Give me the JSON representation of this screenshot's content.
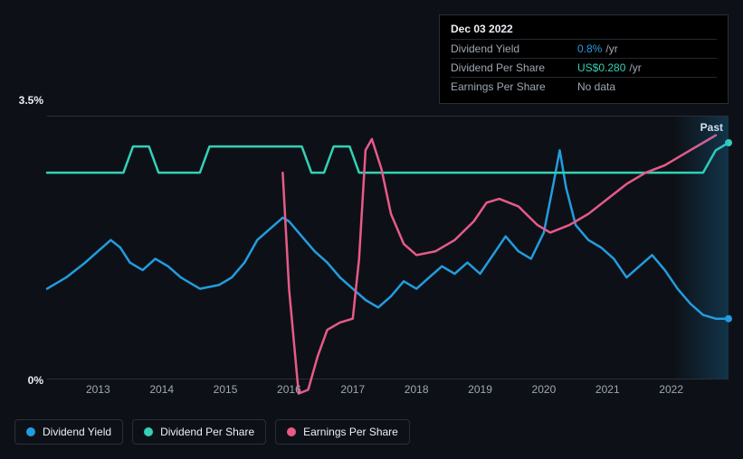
{
  "background_color": "#0d1117",
  "tooltip": {
    "date": "Dec 03 2022",
    "rows": [
      {
        "label": "Dividend Yield",
        "value": "0.8%",
        "unit": "/yr",
        "value_color": "#239cdf"
      },
      {
        "label": "Dividend Per Share",
        "value": "US$0.280",
        "unit": "/yr",
        "value_color": "#34d1b6"
      },
      {
        "label": "Earnings Per Share",
        "value": "No data",
        "unit": "",
        "value_color": "#9ea7b3"
      }
    ]
  },
  "chart": {
    "type": "line",
    "y_axis": {
      "min": 0,
      "max": 3.5,
      "ticks": [
        {
          "value": 3.5,
          "label": "3.5%"
        },
        {
          "value": 0,
          "label": "0%"
        }
      ]
    },
    "x_axis": {
      "min": 2012.2,
      "max": 2022.9,
      "ticks": [
        2013,
        2014,
        2015,
        2016,
        2017,
        2018,
        2019,
        2020,
        2021,
        2022
      ]
    },
    "past_label": "Past",
    "grid_color": "#2a2e37",
    "series": [
      {
        "name": "Dividend Yield",
        "color": "#239cdf",
        "width": 2.5,
        "end_marker": true,
        "points": [
          [
            2012.2,
            1.2
          ],
          [
            2012.5,
            1.35
          ],
          [
            2012.8,
            1.55
          ],
          [
            2013.0,
            1.7
          ],
          [
            2013.2,
            1.85
          ],
          [
            2013.35,
            1.75
          ],
          [
            2013.5,
            1.55
          ],
          [
            2013.7,
            1.45
          ],
          [
            2013.9,
            1.6
          ],
          [
            2014.1,
            1.5
          ],
          [
            2014.3,
            1.35
          ],
          [
            2014.6,
            1.2
          ],
          [
            2014.9,
            1.25
          ],
          [
            2015.1,
            1.35
          ],
          [
            2015.3,
            1.55
          ],
          [
            2015.5,
            1.85
          ],
          [
            2015.7,
            2.0
          ],
          [
            2015.9,
            2.15
          ],
          [
            2016.0,
            2.1
          ],
          [
            2016.2,
            1.9
          ],
          [
            2016.4,
            1.7
          ],
          [
            2016.6,
            1.55
          ],
          [
            2016.8,
            1.35
          ],
          [
            2017.0,
            1.2
          ],
          [
            2017.2,
            1.05
          ],
          [
            2017.4,
            0.95
          ],
          [
            2017.6,
            1.1
          ],
          [
            2017.8,
            1.3
          ],
          [
            2018.0,
            1.2
          ],
          [
            2018.2,
            1.35
          ],
          [
            2018.4,
            1.5
          ],
          [
            2018.6,
            1.4
          ],
          [
            2018.8,
            1.55
          ],
          [
            2019.0,
            1.4
          ],
          [
            2019.2,
            1.65
          ],
          [
            2019.4,
            1.9
          ],
          [
            2019.6,
            1.7
          ],
          [
            2019.8,
            1.6
          ],
          [
            2020.0,
            1.95
          ],
          [
            2020.15,
            2.6
          ],
          [
            2020.25,
            3.05
          ],
          [
            2020.35,
            2.55
          ],
          [
            2020.5,
            2.05
          ],
          [
            2020.7,
            1.85
          ],
          [
            2020.9,
            1.75
          ],
          [
            2021.1,
            1.6
          ],
          [
            2021.3,
            1.35
          ],
          [
            2021.5,
            1.5
          ],
          [
            2021.7,
            1.65
          ],
          [
            2021.9,
            1.45
          ],
          [
            2022.1,
            1.2
          ],
          [
            2022.3,
            1.0
          ],
          [
            2022.5,
            0.85
          ],
          [
            2022.7,
            0.8
          ],
          [
            2022.9,
            0.8
          ]
        ]
      },
      {
        "name": "Dividend Per Share",
        "color": "#34d1b6",
        "width": 2.5,
        "end_marker": true,
        "points": [
          [
            2012.2,
            2.75
          ],
          [
            2013.4,
            2.75
          ],
          [
            2013.55,
            3.1
          ],
          [
            2013.8,
            3.1
          ],
          [
            2013.95,
            2.75
          ],
          [
            2014.6,
            2.75
          ],
          [
            2014.75,
            3.1
          ],
          [
            2016.2,
            3.1
          ],
          [
            2016.35,
            2.75
          ],
          [
            2016.55,
            2.75
          ],
          [
            2016.7,
            3.1
          ],
          [
            2016.95,
            3.1
          ],
          [
            2017.1,
            2.75
          ],
          [
            2022.5,
            2.75
          ],
          [
            2022.7,
            3.05
          ],
          [
            2022.9,
            3.15
          ]
        ]
      },
      {
        "name": "Earnings Per Share",
        "color": "#e85a88",
        "width": 2.5,
        "end_marker": false,
        "points": [
          [
            2015.9,
            2.75
          ],
          [
            2016.0,
            1.2
          ],
          [
            2016.15,
            -0.2
          ],
          [
            2016.3,
            -0.15
          ],
          [
            2016.45,
            0.3
          ],
          [
            2016.6,
            0.65
          ],
          [
            2016.8,
            0.75
          ],
          [
            2017.0,
            0.8
          ],
          [
            2017.1,
            1.6
          ],
          [
            2017.2,
            3.05
          ],
          [
            2017.3,
            3.2
          ],
          [
            2017.45,
            2.8
          ],
          [
            2017.6,
            2.2
          ],
          [
            2017.8,
            1.8
          ],
          [
            2018.0,
            1.65
          ],
          [
            2018.3,
            1.7
          ],
          [
            2018.6,
            1.85
          ],
          [
            2018.9,
            2.1
          ],
          [
            2019.1,
            2.35
          ],
          [
            2019.3,
            2.4
          ],
          [
            2019.6,
            2.3
          ],
          [
            2019.9,
            2.05
          ],
          [
            2020.1,
            1.95
          ],
          [
            2020.4,
            2.05
          ],
          [
            2020.7,
            2.2
          ],
          [
            2021.0,
            2.4
          ],
          [
            2021.3,
            2.6
          ],
          [
            2021.6,
            2.75
          ],
          [
            2021.9,
            2.85
          ],
          [
            2022.2,
            3.0
          ],
          [
            2022.5,
            3.15
          ],
          [
            2022.7,
            3.25
          ]
        ]
      }
    ],
    "legend": [
      {
        "label": "Dividend Yield",
        "color": "#239cdf"
      },
      {
        "label": "Dividend Per Share",
        "color": "#34d1b6"
      },
      {
        "label": "Earnings Per Share",
        "color": "#e85a88"
      }
    ]
  }
}
